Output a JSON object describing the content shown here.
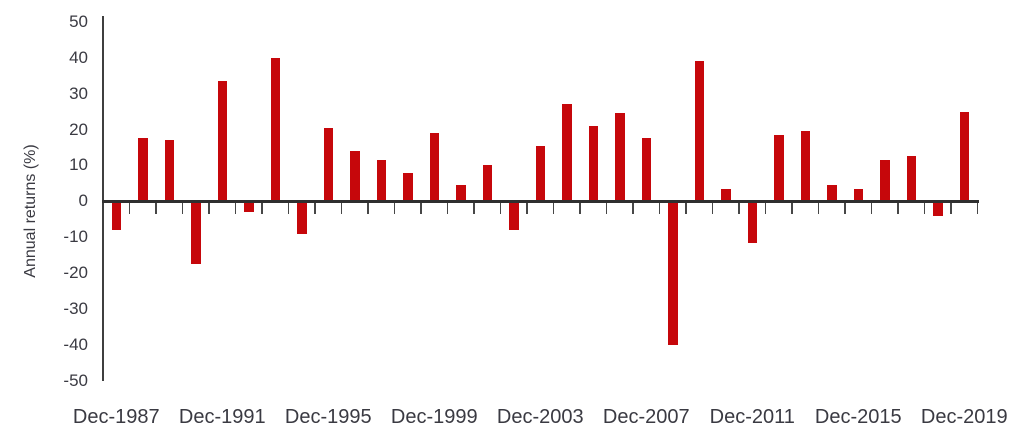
{
  "chart_data": {
    "type": "bar",
    "title": "",
    "xlabel": "",
    "ylabel": "Annual returns (%)",
    "ylim": [
      -50,
      50
    ],
    "ytick_interval": 10,
    "ytick_labels": [
      "50",
      "40",
      "30",
      "20",
      "10",
      "0",
      "-10",
      "-20",
      "-30",
      "-40",
      "-50"
    ],
    "yticks": [
      50,
      40,
      30,
      20,
      10,
      0,
      -10,
      -20,
      -30,
      -40,
      -50
    ],
    "categories": [
      "Dec-1987",
      "Dec-1988",
      "Dec-1989",
      "Dec-1990",
      "Dec-1991",
      "Dec-1992",
      "Dec-1993",
      "Dec-1994",
      "Dec-1995",
      "Dec-1996",
      "Dec-1997",
      "Dec-1998",
      "Dec-1999",
      "Dec-2000",
      "Dec-2001",
      "Dec-2002",
      "Dec-2003",
      "Dec-2004",
      "Dec-2005",
      "Dec-2006",
      "Dec-2007",
      "Dec-2008",
      "Dec-2009",
      "Dec-2010",
      "Dec-2011",
      "Dec-2012",
      "Dec-2013",
      "Dec-2014",
      "Dec-2015",
      "Dec-2016",
      "Dec-2017",
      "Dec-2018",
      "Dec-2019"
    ],
    "values": [
      -8,
      17.5,
      17,
      -17.5,
      33.5,
      -3,
      40,
      -9,
      20.5,
      14,
      11.5,
      8,
      19,
      4.5,
      10,
      -8,
      15.5,
      27,
      21,
      24.5,
      17.5,
      -40,
      39,
      3.5,
      -11.5,
      18.5,
      19.5,
      4.5,
      3.5,
      11.5,
      12.5,
      -4,
      25
    ],
    "x_tick_labels": [
      {
        "index": 0,
        "label": "Dec-1987"
      },
      {
        "index": 4,
        "label": "Dec-1991"
      },
      {
        "index": 8,
        "label": "Dec-1995"
      },
      {
        "index": 12,
        "label": "Dec-1999"
      },
      {
        "index": 16,
        "label": "Dec-2003"
      },
      {
        "index": 20,
        "label": "Dec-2007"
      },
      {
        "index": 24,
        "label": "Dec-2011"
      },
      {
        "index": 28,
        "label": "Dec-2015"
      },
      {
        "index": 32,
        "label": "Dec-2019"
      }
    ],
    "grid": false,
    "legend": "none",
    "bar_color": "#c6070b",
    "axis_color": "#3f3f3f",
    "text_color": "#3a3a42"
  }
}
